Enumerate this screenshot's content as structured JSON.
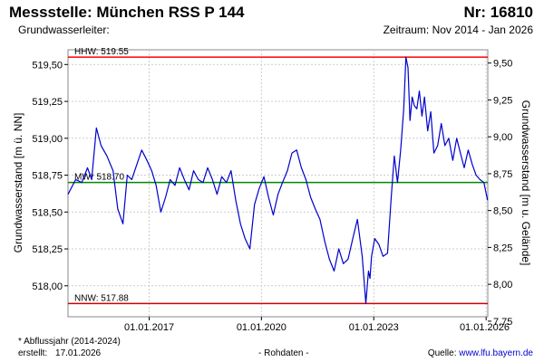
{
  "header": {
    "title": "Messstelle: München RSS P 144",
    "number": "Nr: 16810",
    "subtitle": "Grundwasserleiter:",
    "period": "Zeitraum: Nov 2014 - Jan 2026"
  },
  "footer": {
    "note": "* Abflussjahr (2014-2024)",
    "created_label": "erstellt:",
    "created_date": "17.01.2026",
    "raw": "- Rohdaten -",
    "source_label": "Quelle:",
    "source_url": "www.lfu.bayern.de"
  },
  "colors": {
    "series": "#0000cc",
    "hhw": "#ff0000",
    "nnw": "#cc0000",
    "mw": "#008800",
    "grid": "#cccccc"
  },
  "chart_data": {
    "type": "line",
    "title": "",
    "ylabel": "Grundwasserstand [m ü. NN]",
    "ylabel_right": "Grundwasserstand [m u. Gelände]",
    "ylim": [
      517.79,
      519.6
    ],
    "ylim_right": [
      9.59,
      7.78
    ],
    "y_ticks": [
      "519,50",
      "519,25",
      "519,00",
      "518,75",
      "518,50",
      "518,25",
      "518,00"
    ],
    "y_tick_values": [
      519.5,
      519.25,
      519.0,
      518.75,
      518.5,
      518.25,
      518.0
    ],
    "y2_ticks": [
      "7,75",
      "8,00",
      "8,25",
      "8,50",
      "8,75",
      "9,00",
      "9,25",
      "9,50"
    ],
    "y2_tick_values": [
      7.75,
      8.0,
      8.25,
      8.5,
      8.75,
      9.0,
      9.25,
      9.5
    ],
    "xlim": [
      "2014-11-01",
      "2026-01-17"
    ],
    "x_ticks": [
      "01.01.2017",
      "01.01.2020",
      "01.01.2023",
      "01.01.2026"
    ],
    "x_tick_dates": [
      "2017-01-01",
      "2020-01-01",
      "2023-01-01",
      "2026-01-01"
    ],
    "grid": true,
    "reference_lines": [
      {
        "label": "HHW: 519.55",
        "value": 519.55
      },
      {
        "label": "MW* 518.70",
        "value": 518.7
      },
      {
        "label": "NNW: 517.88",
        "value": 517.88
      }
    ],
    "series": [
      {
        "x": [
          "2014-11-01",
          "2015-01-15",
          "2015-03-15",
          "2015-05-10",
          "2015-06-20",
          "2015-08-05",
          "2015-09-20",
          "2015-11-15",
          "2016-01-15",
          "2016-03-01",
          "2016-04-20",
          "2016-06-01",
          "2016-07-15",
          "2016-09-01",
          "2016-10-20",
          "2016-12-10",
          "2017-01-25",
          "2017-03-10",
          "2017-04-25",
          "2017-06-10",
          "2017-07-25",
          "2017-09-10",
          "2017-10-25",
          "2017-12-10",
          "2018-01-25",
          "2018-03-10",
          "2018-04-25",
          "2018-06-10",
          "2018-07-25",
          "2018-09-10",
          "2018-10-25",
          "2018-12-10",
          "2019-01-25",
          "2019-03-10",
          "2019-04-25",
          "2019-06-10",
          "2019-07-25",
          "2019-09-10",
          "2019-10-25",
          "2019-12-10",
          "2020-01-25",
          "2020-03-10",
          "2020-04-25",
          "2020-06-10",
          "2020-07-25",
          "2020-09-10",
          "2020-10-25",
          "2020-12-10",
          "2021-01-25",
          "2021-03-10",
          "2021-04-25",
          "2021-06-10",
          "2021-07-25",
          "2021-09-10",
          "2021-10-25",
          "2021-12-10",
          "2022-01-25",
          "2022-03-10",
          "2022-04-25",
          "2022-06-10",
          "2022-07-25",
          "2022-09-10",
          "2022-10-15",
          "2022-11-10",
          "2022-11-25",
          "2022-12-10",
          "2023-01-10",
          "2023-02-20",
          "2023-04-01",
          "2023-05-15",
          "2023-06-20",
          "2023-07-20",
          "2023-08-20",
          "2023-09-20",
          "2023-10-20",
          "2023-11-10",
          "2023-12-01",
          "2023-12-20",
          "2024-01-10",
          "2024-02-01",
          "2024-02-25",
          "2024-03-20",
          "2024-04-15",
          "2024-05-10",
          "2024-06-10",
          "2024-07-10",
          "2024-08-10",
          "2024-09-15",
          "2024-10-20",
          "2024-11-25",
          "2025-01-01",
          "2025-02-10",
          "2025-03-20",
          "2025-04-25",
          "2025-06-01",
          "2025-07-10",
          "2025-08-20",
          "2025-09-25",
          "2025-11-01",
          "2025-12-10",
          "2026-01-15"
        ],
        "values": [
          518.62,
          518.72,
          518.7,
          518.8,
          518.72,
          519.07,
          518.95,
          518.88,
          518.78,
          518.52,
          518.42,
          518.75,
          518.72,
          518.82,
          518.92,
          518.85,
          518.78,
          518.68,
          518.5,
          518.6,
          518.72,
          518.68,
          518.8,
          518.72,
          518.65,
          518.78,
          518.72,
          518.7,
          518.8,
          518.72,
          518.62,
          518.74,
          518.7,
          518.78,
          518.58,
          518.42,
          518.32,
          518.25,
          518.55,
          518.66,
          518.74,
          518.6,
          518.48,
          518.62,
          518.7,
          518.78,
          518.9,
          518.92,
          518.8,
          518.72,
          518.6,
          518.52,
          518.45,
          518.3,
          518.18,
          518.1,
          518.25,
          518.15,
          518.18,
          518.32,
          518.45,
          518.2,
          517.88,
          518.1,
          518.05,
          518.2,
          518.32,
          518.28,
          518.2,
          518.22,
          518.6,
          518.88,
          518.7,
          518.92,
          519.2,
          519.55,
          519.48,
          519.12,
          519.28,
          519.22,
          519.2,
          519.32,
          519.15,
          519.28,
          519.05,
          519.18,
          518.9,
          518.95,
          519.1,
          518.95,
          519.0,
          518.85,
          519.0,
          518.9,
          518.8,
          518.92,
          518.82,
          518.75,
          518.72,
          518.7,
          518.58
        ]
      }
    ]
  }
}
